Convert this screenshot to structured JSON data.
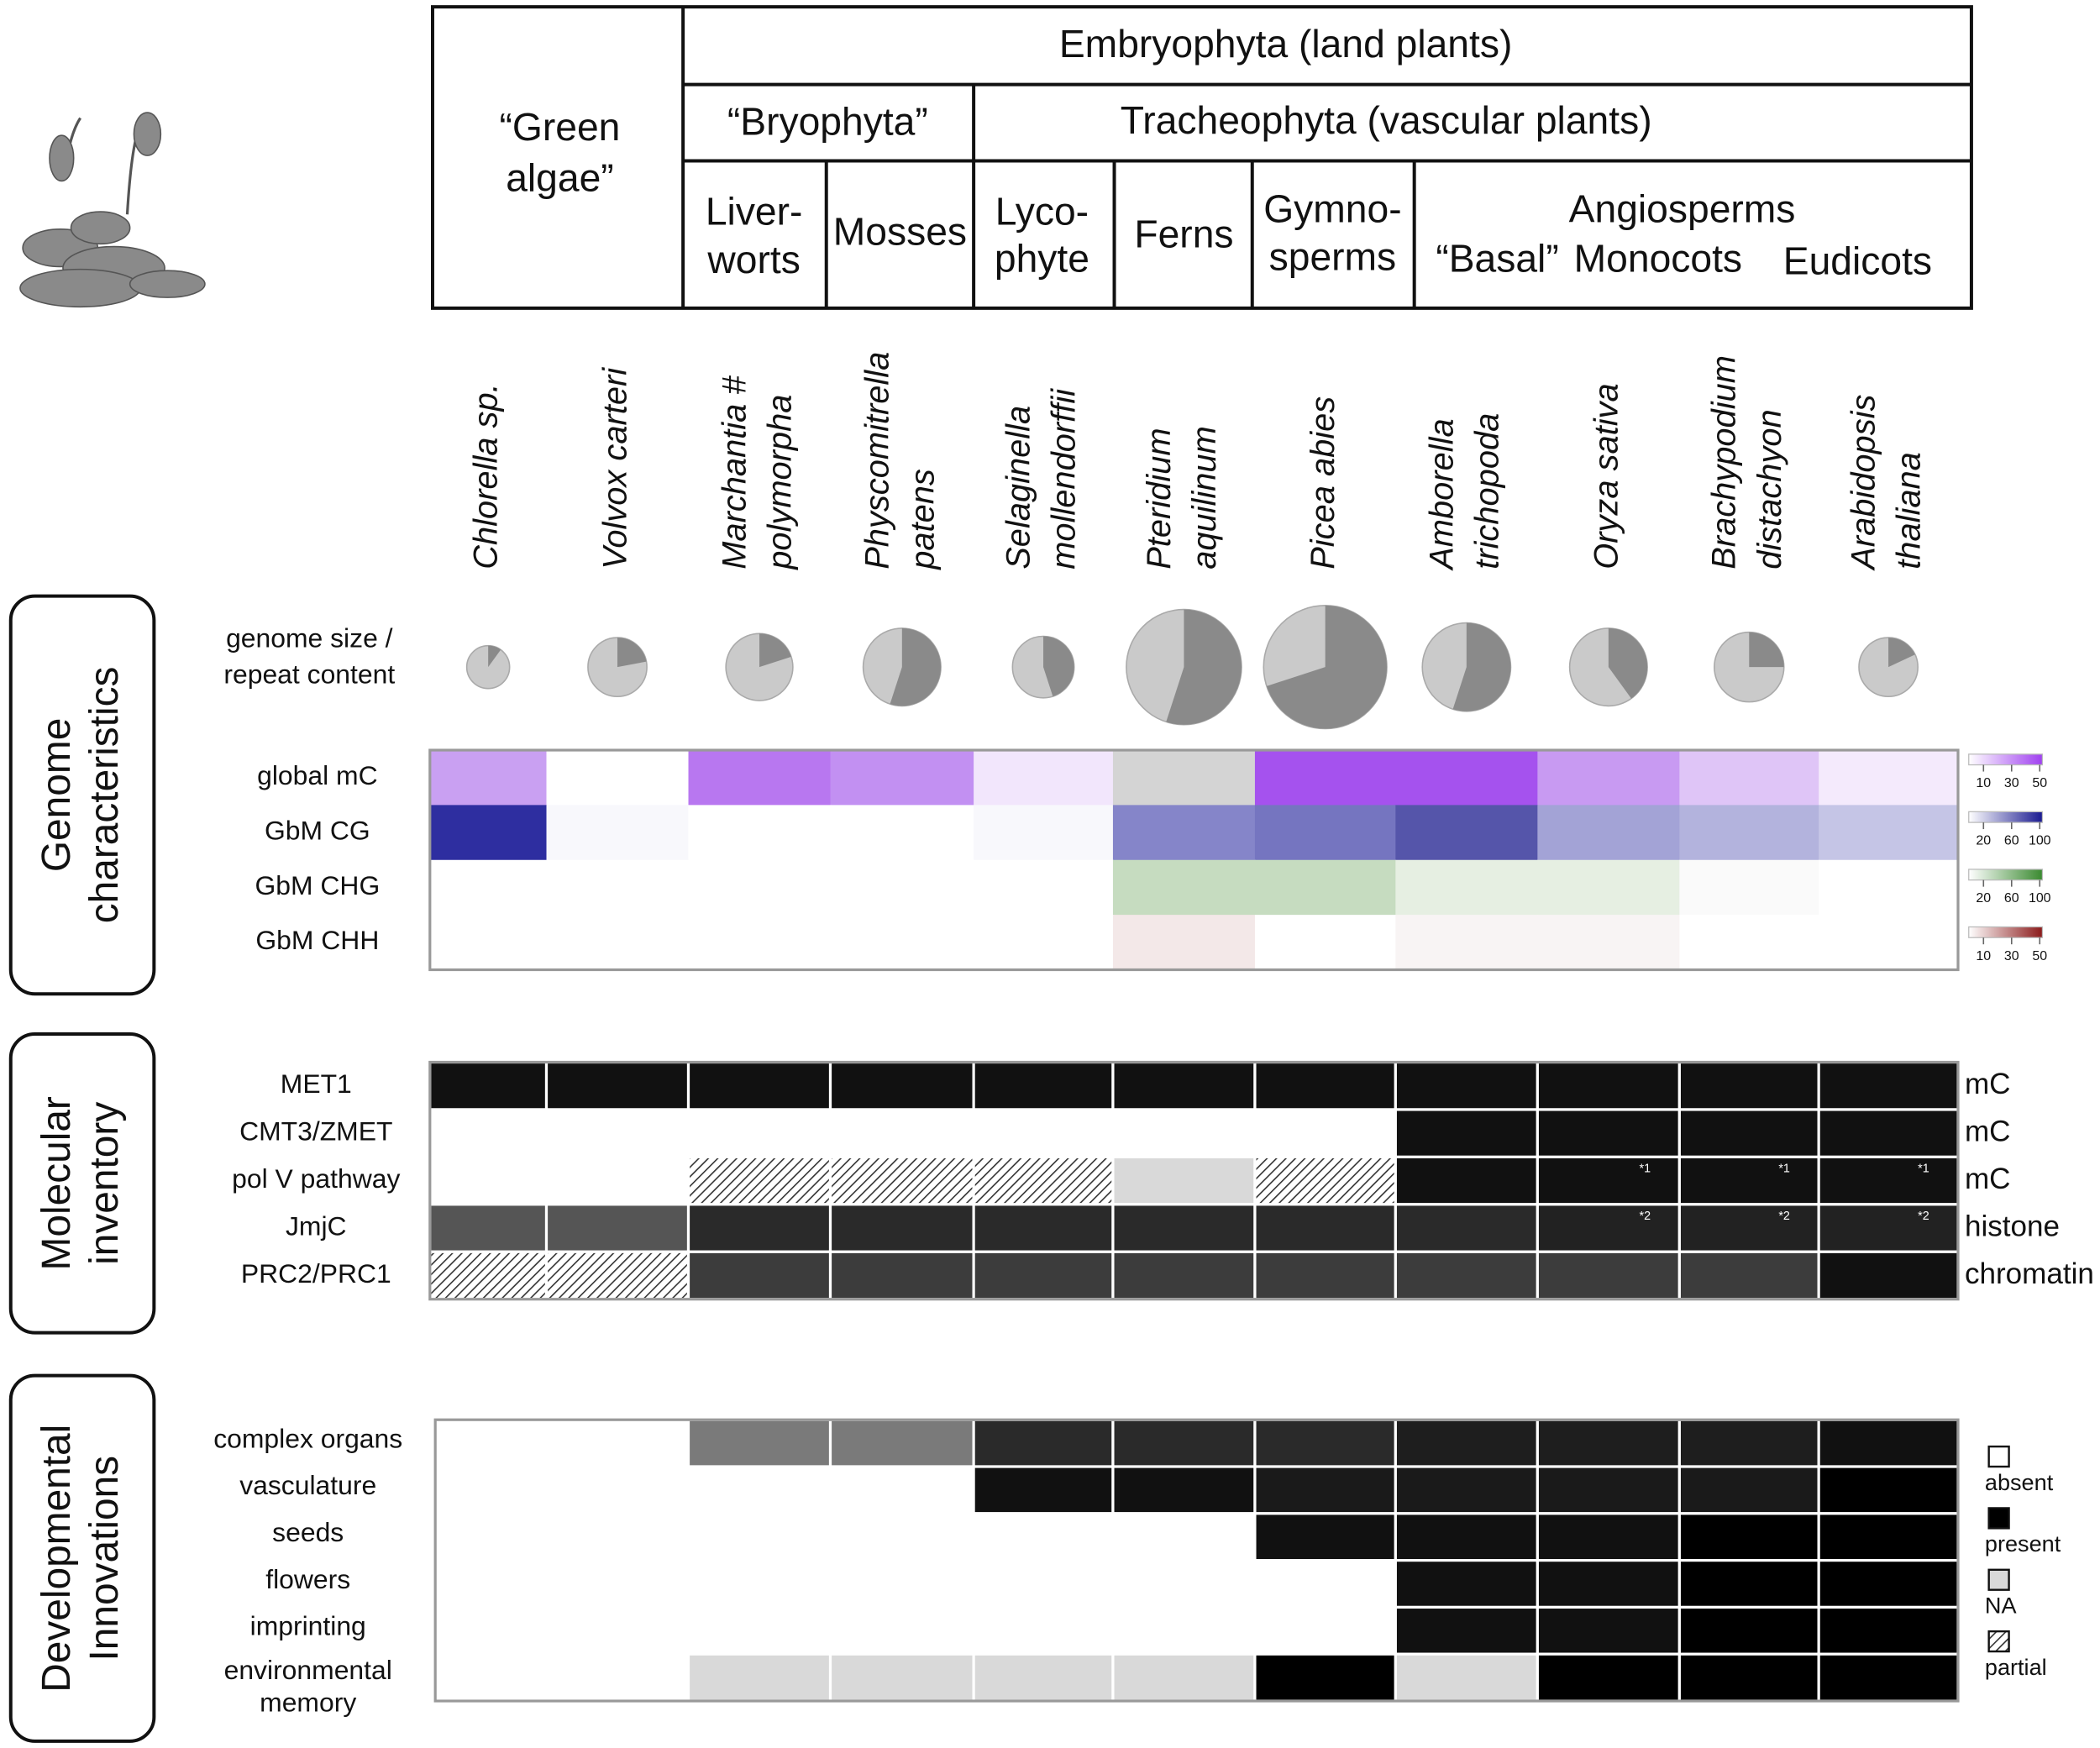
{
  "taxonomy": {
    "green_algae": [
      "“Green",
      "algae”"
    ],
    "embryophyta": "Embryophyta (land plants)",
    "bryophyta": "“Bryophyta”",
    "tracheophyta": "Tracheophyta (vascular plants)",
    "liverworts": [
      "Liver-",
      "worts"
    ],
    "mosses": "Mosses",
    "lycophyte": [
      "Lyco-",
      "phyte"
    ],
    "ferns": "Ferns",
    "gymnosperms": [
      "Gymno-",
      "sperms"
    ],
    "angiosperms": "Angiosperms",
    "angiosperm_groups": [
      "“Basal”",
      "Monocots",
      "Eudicots"
    ]
  },
  "species": [
    [
      "Chlorella sp."
    ],
    [
      "Volvox carteri"
    ],
    [
      "Marchantia #",
      "polymorpha"
    ],
    [
      "Physcomitrella",
      "patens"
    ],
    [
      "Selaginella",
      "mollendorffii"
    ],
    [
      "Pteridium",
      "aquilinum"
    ],
    [
      "Picea abies"
    ],
    [
      "Amborella",
      "trichopoda"
    ],
    [
      "Oryza sativa"
    ],
    [
      "Brachypodium",
      "distachyon"
    ],
    [
      "Arabidopsis",
      "thaliana"
    ]
  ],
  "sections": [
    [
      "Genome",
      "characteristics"
    ],
    [
      "Molecular",
      "inventory"
    ],
    [
      "Developmental",
      "Innovations"
    ]
  ],
  "genome": {
    "pie_label": [
      "genome size /",
      "repeat content"
    ],
    "pies": [
      {
        "size": 16,
        "repeat": 10
      },
      {
        "size": 22,
        "repeat": 22
      },
      {
        "size": 25,
        "repeat": 20
      },
      {
        "size": 29,
        "repeat": 55
      },
      {
        "size": 23,
        "repeat": 45
      },
      {
        "size": 43,
        "repeat": 55
      },
      {
        "size": 46,
        "repeat": 70
      },
      {
        "size": 33,
        "repeat": 55
      },
      {
        "size": 29,
        "repeat": 40
      },
      {
        "size": 26,
        "repeat": 25
      },
      {
        "size": 22,
        "repeat": 18
      }
    ],
    "rows": [
      {
        "label": "global mC",
        "colors": [
          "#c9a0f2",
          "#ffffff",
          "#b877f0",
          "#c290f2",
          "#f2e6fc",
          "#d4d4d4",
          "#a552ee",
          "#a552ee",
          "#c89af2",
          "#dfc5f7",
          "#f4eafc"
        ],
        "scale": {
          "color": "#a040f0",
          "ticks": [
            10,
            30,
            50
          ]
        }
      },
      {
        "label": "GbM CG",
        "colors": [
          "#2e2ea0",
          "#f8f8fc",
          "#ffffff",
          "#ffffff",
          "#f8f8fc",
          "#8585c9",
          "#7575c0",
          "#5555aa",
          "#a3a3d6",
          "#b3b3dd",
          "#c5c5e6"
        ],
        "scale": {
          "color": "#1a1a90",
          "ticks": [
            20,
            60,
            100
          ]
        }
      },
      {
        "label": "GbM CHG",
        "colors": [
          "#ffffff",
          "#ffffff",
          "#ffffff",
          "#ffffff",
          "#ffffff",
          "#c6dcc0",
          "#c6dcc0",
          "#e6efe2",
          "#e6efe2",
          "#fafafa",
          "#ffffff"
        ],
        "scale": {
          "color": "#3a8a30",
          "ticks": [
            20,
            60,
            100
          ]
        }
      },
      {
        "label": "GbM CHH",
        "colors": [
          "#ffffff",
          "#ffffff",
          "#ffffff",
          "#ffffff",
          "#ffffff",
          "#f3e8e8",
          "#ffffff",
          "#f8f4f4",
          "#f8f4f4",
          "#ffffff",
          "#ffffff"
        ],
        "scale": {
          "color": "#8b1a1a",
          "ticks": [
            10,
            30,
            50
          ]
        }
      }
    ]
  },
  "molecular": {
    "rows": [
      {
        "label": "MET1",
        "right_label": "mC",
        "cells": [
          "#111111",
          "#111111",
          "#111111",
          "#111111",
          "#111111",
          "#111111",
          "#111111",
          "#111111",
          "#111111",
          "#111111",
          "#111111"
        ]
      },
      {
        "label": "CMT3/ZMET",
        "right_label": "mC",
        "cells": [
          "#ffffff",
          "#ffffff",
          "#ffffff",
          "#ffffff",
          "#ffffff",
          "#ffffff",
          "#ffffff",
          "#111111",
          "#111111",
          "#111111",
          "#111111"
        ]
      },
      {
        "label": "pol V pathway",
        "right_label": "mC",
        "cells": [
          "#ffffff",
          "#ffffff",
          "hatch",
          "hatch",
          "hatch",
          "#d9d9d9",
          "hatch",
          "#111111",
          {
            "color": "#111111",
            "note": "*1"
          },
          {
            "color": "#111111",
            "note": "*1"
          },
          {
            "color": "#111111",
            "note": "*1"
          }
        ]
      },
      {
        "label": "JmjC",
        "right_label": "histone",
        "cells": [
          "#555555",
          "#555555",
          "#2a2a2a",
          "#2a2a2a",
          "#2a2a2a",
          "#2a2a2a",
          "#2a2a2a",
          "#2a2a2a",
          {
            "color": "#222222",
            "note": "*2"
          },
          {
            "color": "#222222",
            "note": "*2"
          },
          {
            "color": "#222222",
            "note": "*2"
          }
        ]
      },
      {
        "label": "PRC2/PRC1",
        "right_label": "chromatin",
        "cells": [
          "hatch",
          "hatch",
          "#3c3c3c",
          "#3c3c3c",
          "#3c3c3c",
          "#3c3c3c",
          "#3c3c3c",
          "#3c3c3c",
          "#3c3c3c",
          "#3c3c3c",
          "#111111"
        ]
      }
    ]
  },
  "developmental": {
    "rows": [
      {
        "label": [
          "complex organs"
        ],
        "cells": [
          "#ffffff",
          "#ffffff",
          "#7a7a7a",
          "#7a7a7a",
          "#2a2a2a",
          "#2a2a2a",
          "#2a2a2a",
          "#1e1e1e",
          "#1e1e1e",
          "#1e1e1e",
          "#111111"
        ]
      },
      {
        "label": [
          "vasculature"
        ],
        "cells": [
          "#ffffff",
          "#ffffff",
          "#ffffff",
          "#ffffff",
          "#111111",
          "#111111",
          "#1a1a1a",
          "#1a1a1a",
          "#1a1a1a",
          "#1a1a1a",
          "#000000"
        ]
      },
      {
        "label": [
          "seeds"
        ],
        "cells": [
          "#ffffff",
          "#ffffff",
          "#ffffff",
          "#ffffff",
          "#ffffff",
          "#ffffff",
          "#111111",
          "#111111",
          "#111111",
          "#000000",
          "#000000"
        ]
      },
      {
        "label": [
          "flowers"
        ],
        "cells": [
          "#ffffff",
          "#ffffff",
          "#ffffff",
          "#ffffff",
          "#ffffff",
          "#ffffff",
          "#ffffff",
          "#111111",
          "#111111",
          "#000000",
          "#000000"
        ]
      },
      {
        "label": [
          "imprinting"
        ],
        "cells": [
          "#ffffff",
          "#ffffff",
          "#ffffff",
          "#ffffff",
          "#ffffff",
          "#ffffff",
          "#ffffff",
          "#111111",
          "#111111",
          "#000000",
          "#000000"
        ]
      },
      {
        "label": [
          "environmental",
          "memory"
        ],
        "cells": [
          "#ffffff",
          "#ffffff",
          "#d9d9d9",
          "#d9d9d9",
          "#d9d9d9",
          "#d9d9d9",
          "#000000",
          "#d9d9d9",
          "#000000",
          "#000000",
          "#000000"
        ]
      }
    ],
    "legend": [
      {
        "label": "absent",
        "color": "#ffffff"
      },
      {
        "label": "present",
        "color": "#000000"
      },
      {
        "label": "NA",
        "color": "#d9d9d9"
      },
      {
        "label": "partial",
        "color": "hatch"
      }
    ]
  }
}
